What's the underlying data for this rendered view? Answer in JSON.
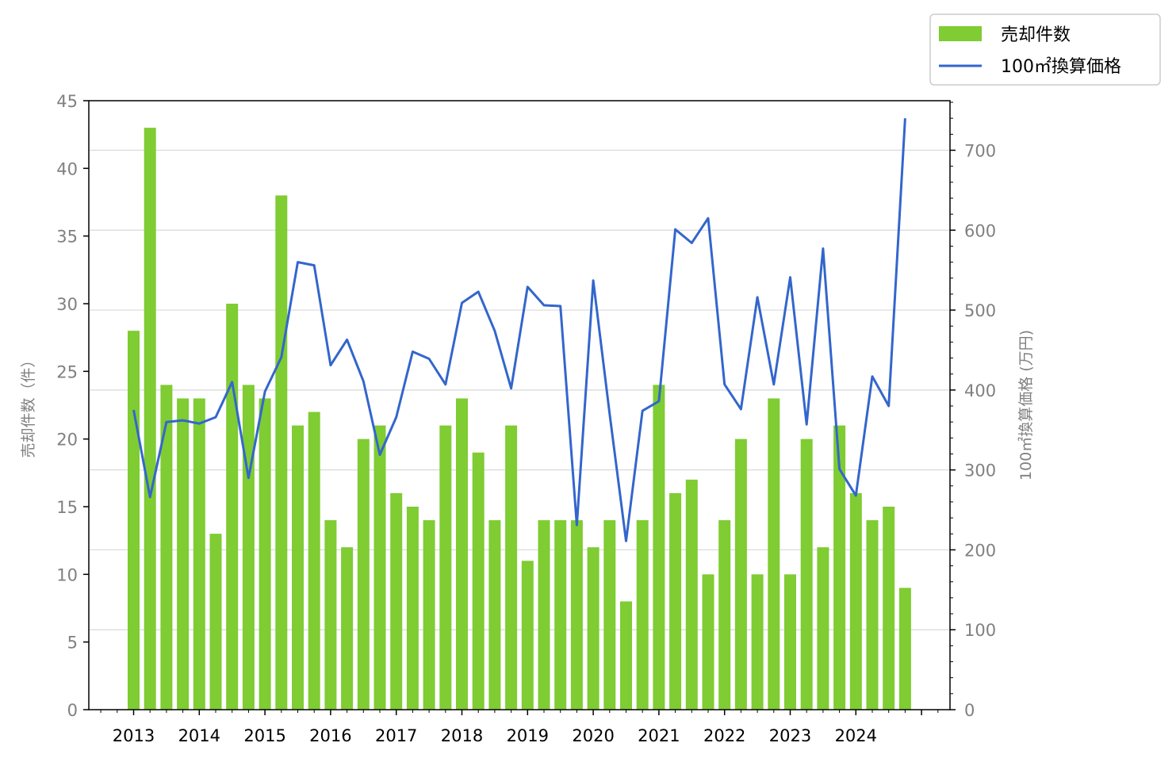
{
  "chart_data": {
    "type": "bar",
    "x": [
      "2013Q1",
      "2013Q2",
      "2013Q3",
      "2013Q4",
      "2014Q1",
      "2014Q2",
      "2014Q3",
      "2014Q4",
      "2015Q1",
      "2015Q2",
      "2015Q3",
      "2015Q4",
      "2016Q1",
      "2016Q2",
      "2016Q3",
      "2016Q4",
      "2017Q1",
      "2017Q2",
      "2017Q3",
      "2017Q4",
      "2018Q1",
      "2018Q2",
      "2018Q3",
      "2018Q4",
      "2019Q1",
      "2019Q2",
      "2019Q3",
      "2019Q4",
      "2020Q1",
      "2020Q2",
      "2020Q3",
      "2020Q4",
      "2021Q1",
      "2021Q2",
      "2021Q3",
      "2021Q4",
      "2022Q1",
      "2022Q2",
      "2022Q3",
      "2022Q4",
      "2023Q1",
      "2023Q2",
      "2023Q3",
      "2023Q4",
      "2024Q1",
      "2024Q2",
      "2024Q3",
      "2024Q4"
    ],
    "x_tick_labels": [
      "2013",
      "2014",
      "2015",
      "2016",
      "2017",
      "2018",
      "2019",
      "2020",
      "2021",
      "2022",
      "2023",
      "2024"
    ],
    "series": [
      {
        "name": "売却件数",
        "type": "bar",
        "axis": "left",
        "color": "#7fcc33",
        "values": [
          28,
          43,
          24,
          23,
          23,
          13,
          30,
          24,
          23,
          38,
          21,
          22,
          14,
          12,
          20,
          21,
          16,
          15,
          14,
          21,
          23,
          19,
          14,
          21,
          11,
          14,
          14,
          14,
          12,
          14,
          8,
          14,
          24,
          16,
          17,
          10,
          14,
          20,
          10,
          23,
          10,
          20,
          12,
          21,
          16,
          14,
          15,
          9
        ]
      },
      {
        "name": "100㎡換算価格",
        "type": "line",
        "axis": "right",
        "color": "#3366cc",
        "values": [
          375,
          266,
          360,
          362,
          358,
          366,
          410,
          290,
          398,
          441,
          560,
          556,
          431,
          463,
          411,
          319,
          366,
          448,
          439,
          407,
          509,
          523,
          474,
          402,
          529,
          506,
          505,
          231,
          537,
          370,
          211,
          374,
          386,
          601,
          584,
          615,
          407,
          376,
          516,
          407,
          541,
          357,
          577,
          301,
          268,
          417,
          380,
          740
        ]
      }
    ],
    "y_left": {
      "label": "売却件数（件）",
      "lim": [
        0,
        45
      ],
      "ticks": [
        0,
        5,
        10,
        15,
        20,
        25,
        30,
        35,
        40,
        45
      ]
    },
    "y_right": {
      "label": "100㎡換算価格 (万円)",
      "lim": [
        0,
        762
      ],
      "ticks": [
        0,
        100,
        200,
        300,
        400,
        500,
        600,
        700
      ]
    },
    "grid": "horizontal",
    "legend": {
      "placement": "top-right",
      "entries": [
        "売却件数",
        "100㎡換算価格"
      ]
    }
  }
}
